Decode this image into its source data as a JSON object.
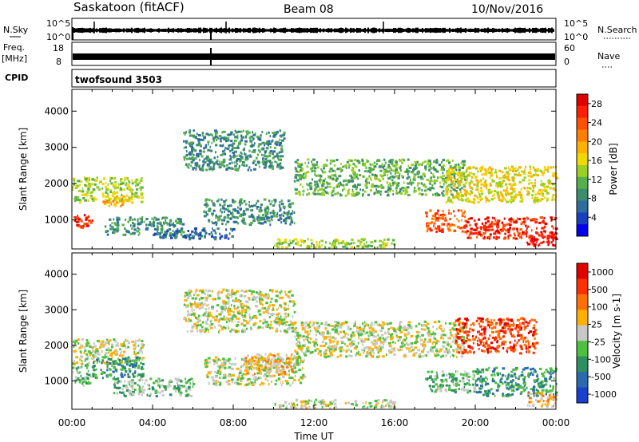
{
  "header": {
    "station": "Saskatoon (fitACF)",
    "beam": "Beam 08",
    "date": "10/Nov/2016"
  },
  "strips": {
    "nsky_label": "N.Sky",
    "nsky_ticks": [
      "10^5",
      "10^0"
    ],
    "nsearch_label": "N.Search",
    "nsearch_ticks": [
      "10^5",
      "10^0"
    ],
    "freq_label_1": "Freq.",
    "freq_label_2": "[MHz]",
    "freq_ticks": [
      "18",
      "8"
    ],
    "nave_label": "Nave",
    "nave_ticks": [
      "60",
      "0"
    ],
    "cpid_label": "CPID",
    "cpid_value": "twofsound 3503"
  },
  "chart_data": [
    {
      "type": "heatmap",
      "name": "power",
      "ylabel": "Slant Range [km]",
      "ylim": [
        200,
        4600
      ],
      "yticks": [
        1000,
        2000,
        3000,
        4000
      ],
      "xlim": [
        0,
        24
      ],
      "xlabel": "Time UT",
      "xticks": [
        "00:00",
        "04:00",
        "08:00",
        "12:00",
        "16:00",
        "20:00",
        "00:00"
      ],
      "colorbar": {
        "label": "Power [dB]",
        "ticks": [
          "4",
          "8",
          "12",
          "16",
          "20",
          "24",
          "28"
        ],
        "colors": [
          "#0000ee",
          "#1a3fbf",
          "#2e6e9e",
          "#3c8c6e",
          "#54b04a",
          "#9ad020",
          "#f0d800",
          "#ffb000",
          "#ff8000",
          "#ff5000",
          "#ff2000",
          "#e00000"
        ]
      },
      "regions": [
        {
          "t0": 0.0,
          "t1": 1.0,
          "r0": 800,
          "r1": 1200,
          "level": 10
        },
        {
          "t0": 0.0,
          "t1": 3.5,
          "r0": 1500,
          "r1": 2200,
          "level": 5
        },
        {
          "t0": 1.5,
          "t1": 3.0,
          "r0": 1400,
          "r1": 1700,
          "level": 7
        },
        {
          "t0": 1.5,
          "t1": 5.5,
          "r0": 600,
          "r1": 1100,
          "level": 3
        },
        {
          "t0": 4.0,
          "t1": 8.0,
          "r0": 500,
          "r1": 800,
          "level": 2
        },
        {
          "t0": 5.5,
          "t1": 10.5,
          "r0": 2400,
          "r1": 3500,
          "level": 3
        },
        {
          "t0": 6.5,
          "t1": 11.0,
          "r0": 900,
          "r1": 1600,
          "level": 3
        },
        {
          "t0": 11.0,
          "t1": 19.5,
          "r0": 1700,
          "r1": 2700,
          "level": 4
        },
        {
          "t0": 10.0,
          "t1": 16.0,
          "r0": 250,
          "r1": 500,
          "level": 5
        },
        {
          "t0": 17.5,
          "t1": 19.5,
          "r0": 700,
          "r1": 1300,
          "level": 9
        },
        {
          "t0": 18.5,
          "t1": 24.0,
          "r0": 1500,
          "r1": 2500,
          "level": 6
        },
        {
          "t0": 19.5,
          "t1": 24.0,
          "r0": 500,
          "r1": 1100,
          "level": 10
        },
        {
          "t0": 22.5,
          "t1": 24.0,
          "r0": 300,
          "r1": 700,
          "level": 11
        }
      ]
    },
    {
      "type": "heatmap",
      "name": "velocity",
      "ylabel": "Slant Range [km]",
      "ylim": [
        200,
        4600
      ],
      "yticks": [
        1000,
        2000,
        3000,
        4000
      ],
      "xlim": [
        0,
        24
      ],
      "xlabel": "Time UT",
      "xticks": [
        "00:00",
        "04:00",
        "08:00",
        "12:00",
        "16:00",
        "20:00",
        "00:00"
      ],
      "colorbar": {
        "label": "Velocity [m s-1]",
        "ticks": [
          "1000",
          "500",
          "100",
          "25",
          "-25",
          "-100",
          "-500",
          "-1000"
        ],
        "colors": [
          "#1a40d0",
          "#2a6ab0",
          "#2e9060",
          "#4ec040",
          "#c8c8c8",
          "#ffb000",
          "#ff7000",
          "#ff3000",
          "#e00000"
        ]
      },
      "regions": [
        {
          "t0": 0.0,
          "t1": 1.0,
          "r0": 900,
          "r1": 1500,
          "level": 3
        },
        {
          "t0": 0.0,
          "t1": 3.5,
          "r0": 1500,
          "r1": 2200,
          "level": 4
        },
        {
          "t0": 1.0,
          "t1": 3.5,
          "r0": 1100,
          "r1": 1700,
          "level": 2
        },
        {
          "t0": 2.0,
          "t1": 6.0,
          "r0": 600,
          "r1": 1100,
          "level": 3
        },
        {
          "t0": 5.5,
          "t1": 11.0,
          "r0": 2400,
          "r1": 3600,
          "level": 4
        },
        {
          "t0": 6.5,
          "t1": 11.5,
          "r0": 900,
          "r1": 1700,
          "level": 4
        },
        {
          "t0": 8.5,
          "t1": 11.0,
          "r0": 1200,
          "r1": 1800,
          "level": 5
        },
        {
          "t0": 11.0,
          "t1": 19.5,
          "r0": 1700,
          "r1": 2700,
          "level": 4
        },
        {
          "t0": 10.0,
          "t1": 16.0,
          "r0": 250,
          "r1": 500,
          "level": 4
        },
        {
          "t0": 17.5,
          "t1": 20.0,
          "r0": 700,
          "r1": 1300,
          "level": 3
        },
        {
          "t0": 19.0,
          "t1": 23.0,
          "r0": 1800,
          "r1": 2800,
          "level": 7
        },
        {
          "t0": 20.0,
          "t1": 24.0,
          "r0": 600,
          "r1": 1400,
          "level": 2
        },
        {
          "t0": 22.5,
          "t1": 24.0,
          "r0": 300,
          "r1": 700,
          "level": 5
        }
      ]
    }
  ]
}
